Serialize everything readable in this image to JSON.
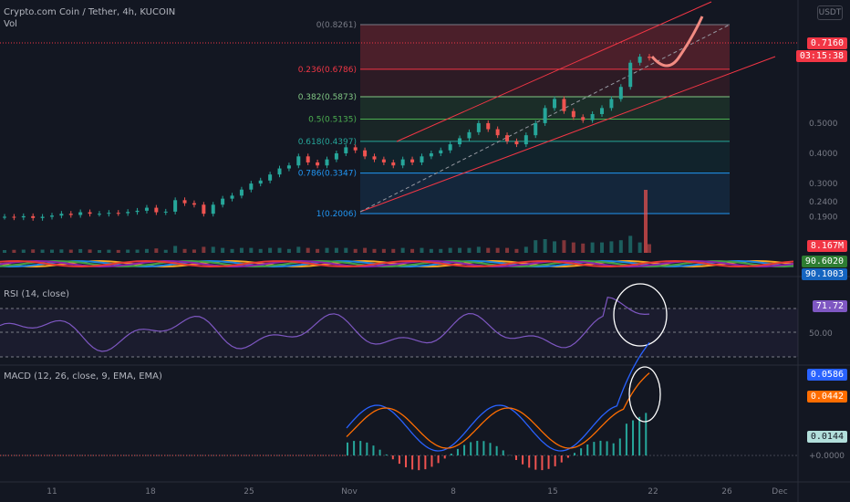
{
  "header": {
    "title": "Crypto.com Coin / Tether, 4h, KUCOIN",
    "volume_label": "Vol",
    "currency_button": "USDT"
  },
  "indicators": {
    "rsi_label": "RSI (14, close)",
    "macd_label": "MACD (12, 26, close, 9, EMA, EMA)"
  },
  "badges": {
    "price": "0.7160",
    "countdown": "03:15:38",
    "volume": "8.167M",
    "ribbon_a": "90.6020",
    "ribbon_b": "90.1003",
    "rsi": "71.72",
    "macd": "0.0586",
    "signal": "0.0442",
    "hist": "0.0144"
  },
  "colors": {
    "background": "#131722",
    "price_badge": "#f23645",
    "rsi_line": "#7e57c2",
    "macd_line": "#2962ff",
    "signal_line": "#ff6d00",
    "up": "#26a69a",
    "down": "#ef5350"
  },
  "chart_data": [
    {
      "type": "candlestick",
      "title": "Crypto.com Coin / Tether, 4h, KUCOIN",
      "y_ticks": [
        "0.5000",
        "0.4000",
        "0.3000",
        "0.2400",
        "0.1900"
      ],
      "x_ticks": [
        "11",
        "18",
        "25",
        "Nov",
        "8",
        "15",
        "22",
        "26",
        "Dec"
      ],
      "fibonacci": [
        {
          "level": "0",
          "price": "0.8261"
        },
        {
          "level": "0.236",
          "price": "0.6786"
        },
        {
          "level": "0.382",
          "price": "0.5873"
        },
        {
          "level": "0.5",
          "price": "0.5135"
        },
        {
          "level": "0.618",
          "price": "0.4397"
        },
        {
          "level": "0.786",
          "price": "0.3347"
        },
        {
          "level": "1",
          "price": "0.2006"
        }
      ],
      "last_price": 0.716,
      "close_approx": [
        0.19,
        0.188,
        0.192,
        0.186,
        0.19,
        0.194,
        0.2,
        0.196,
        0.205,
        0.2,
        0.2,
        0.203,
        0.202,
        0.206,
        0.21,
        0.22,
        0.205,
        0.207,
        0.245,
        0.235,
        0.23,
        0.2,
        0.23,
        0.25,
        0.26,
        0.28,
        0.3,
        0.31,
        0.33,
        0.35,
        0.36,
        0.39,
        0.37,
        0.36,
        0.38,
        0.4,
        0.42,
        0.41,
        0.39,
        0.38,
        0.37,
        0.36,
        0.38,
        0.37,
        0.39,
        0.4,
        0.41,
        0.43,
        0.45,
        0.47,
        0.5,
        0.48,
        0.46,
        0.44,
        0.43,
        0.46,
        0.5,
        0.55,
        0.58,
        0.54,
        0.52,
        0.51,
        0.53,
        0.55,
        0.58,
        0.62,
        0.7,
        0.72,
        0.716
      ]
    },
    {
      "type": "line",
      "name": "RSI (14, close)",
      "current": 71.72,
      "levels": [
        70,
        50,
        30
      ]
    },
    {
      "type": "line",
      "name": "MACD (12, 26, close, 9, EMA, EMA)",
      "macd": 0.0586,
      "signal": 0.0442,
      "histogram": 0.0144,
      "y_ticks": [
        "+0.0000"
      ]
    }
  ]
}
